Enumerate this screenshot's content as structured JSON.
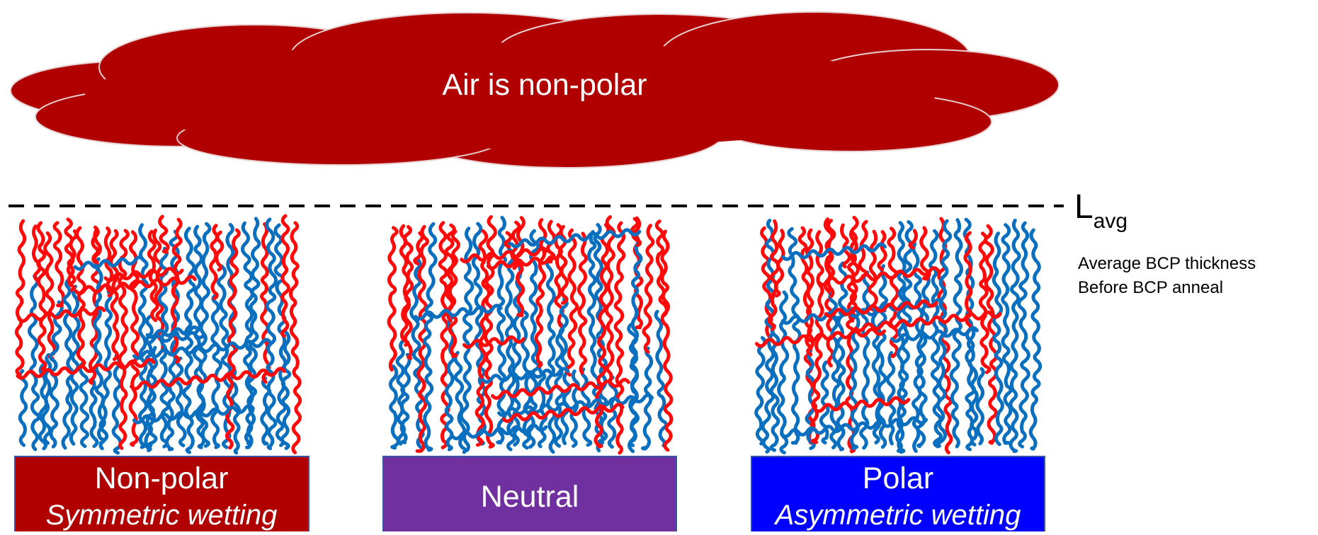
{
  "cloud": {
    "label": "Air is non-polar"
  },
  "reference_line": {
    "label": "L",
    "subscript": "avg",
    "note": [
      "Average BCP thickness",
      "Before BCP anneal"
    ]
  },
  "substrates": [
    {
      "label": "Non-polar",
      "subtitle": "Symmetric wetting"
    },
    {
      "label": "Neutral"
    },
    {
      "label": "Polar",
      "subtitle": "Asymmetric wetting"
    }
  ]
}
